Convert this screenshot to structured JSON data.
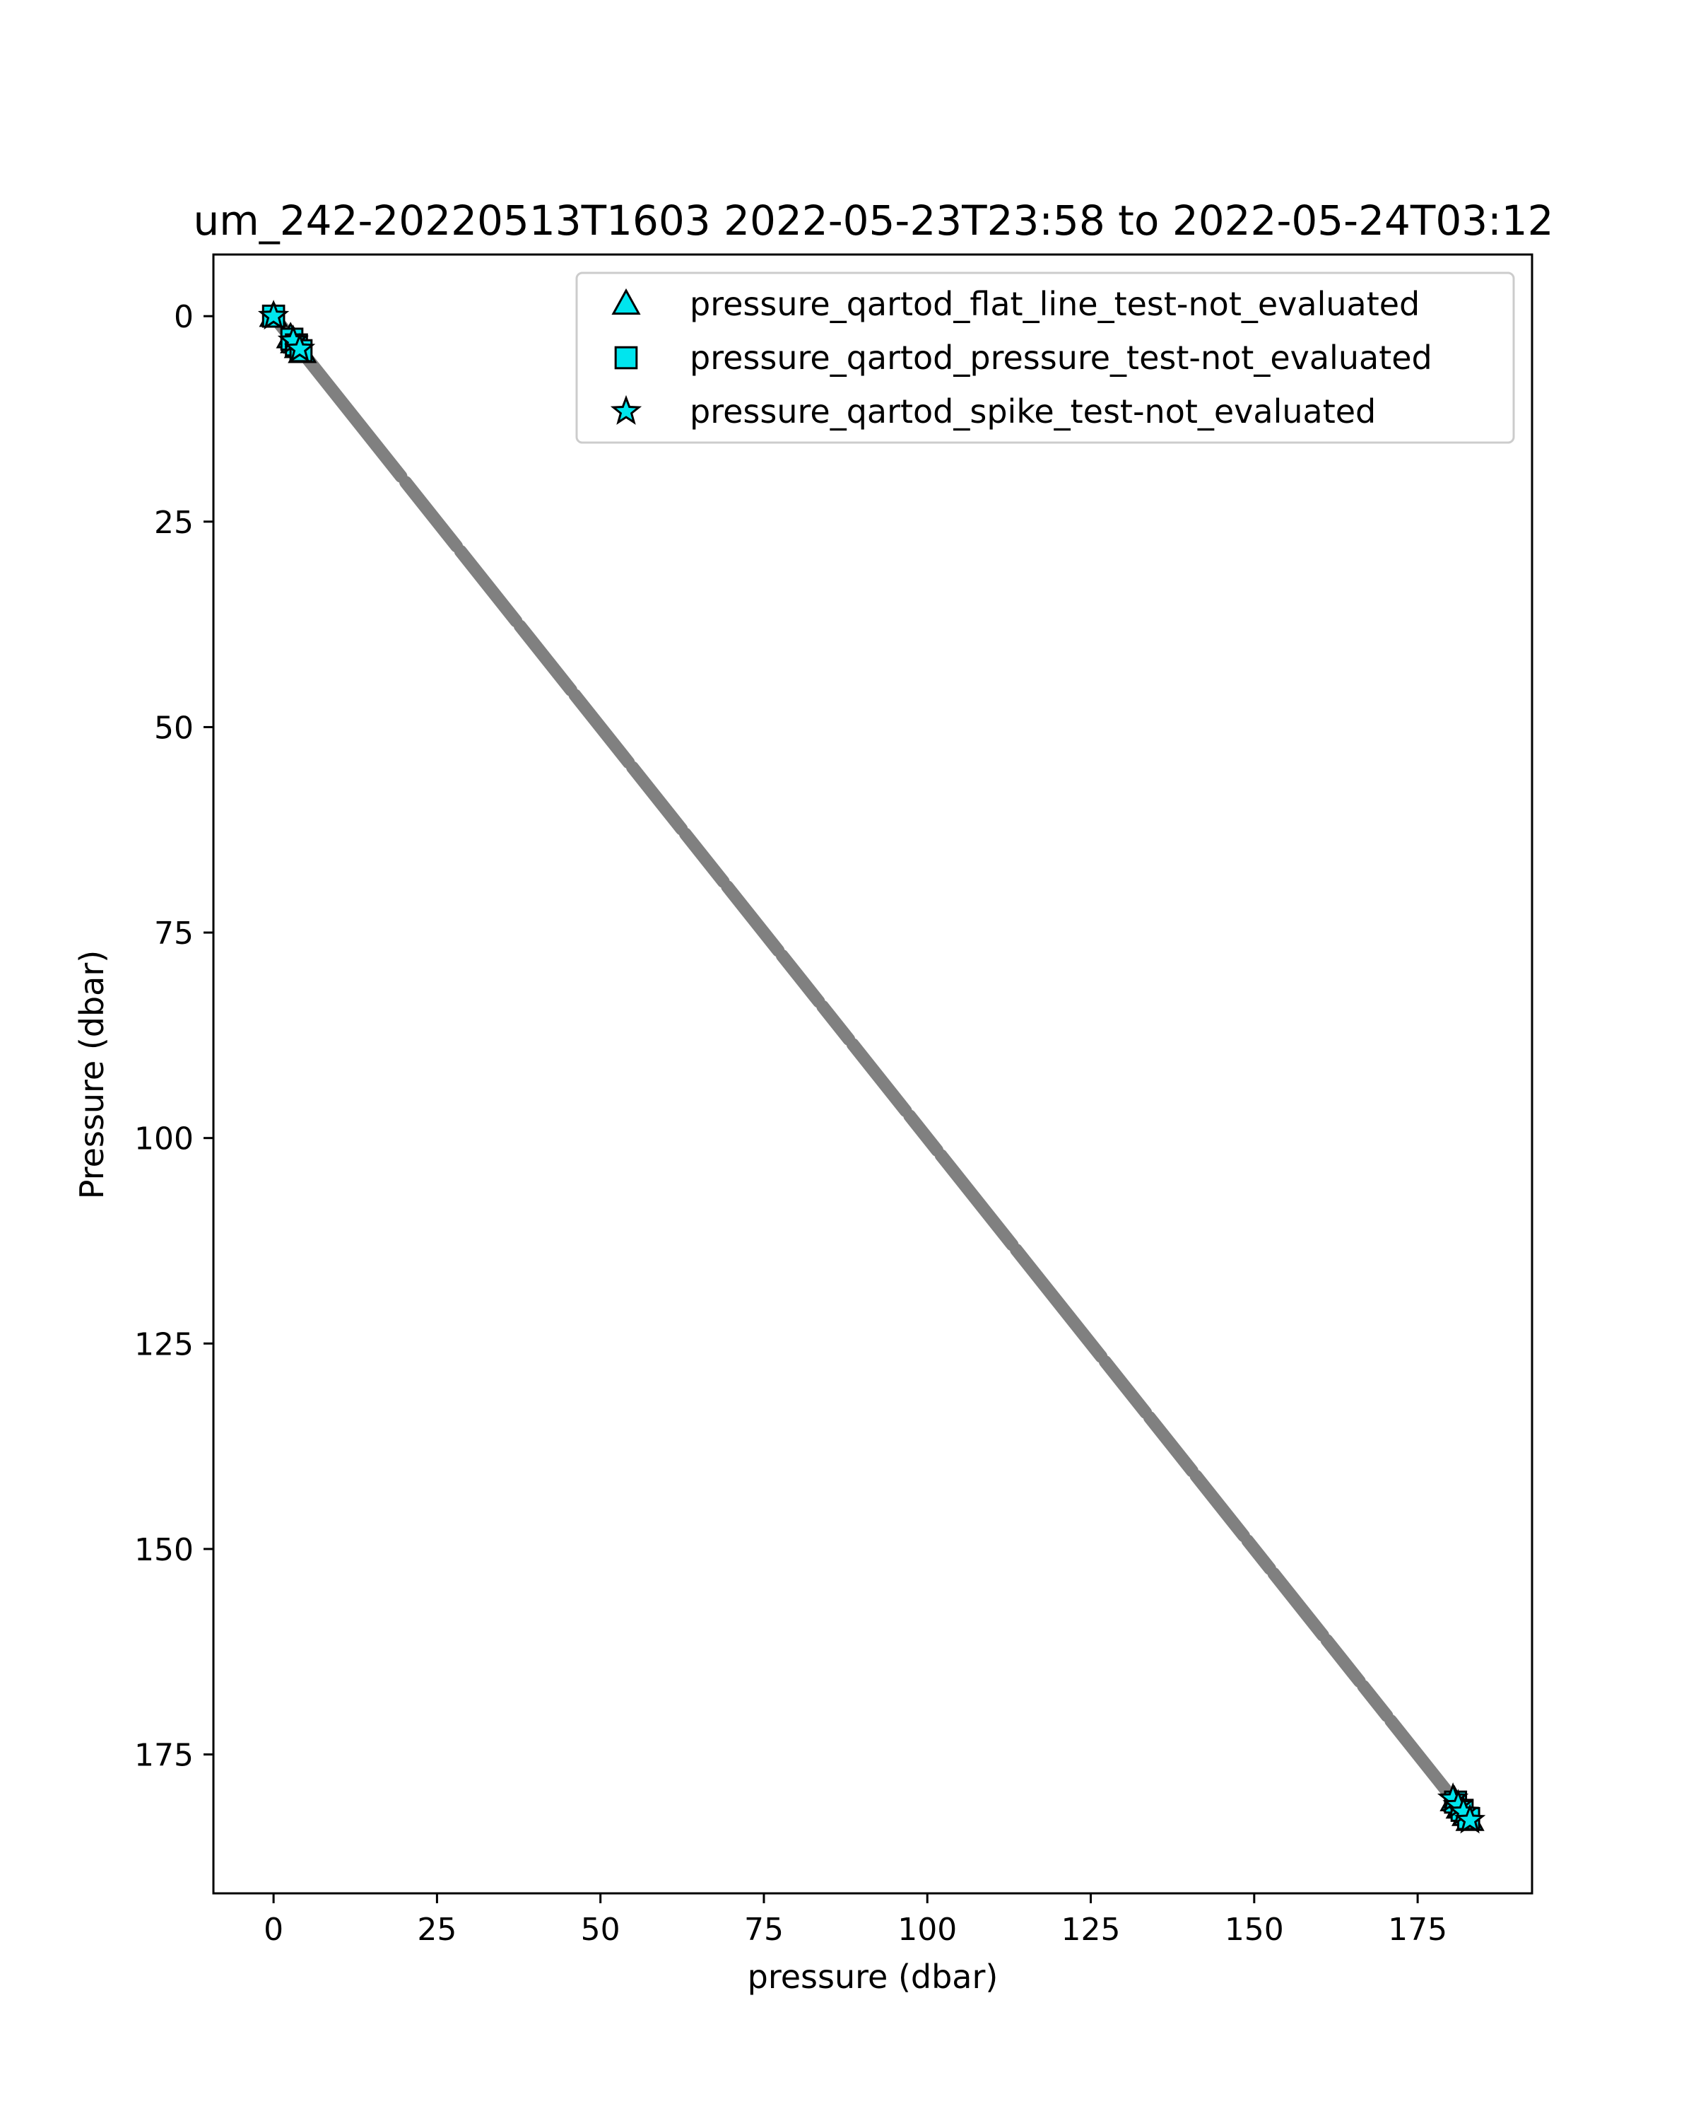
{
  "chart_data": {
    "type": "scatter",
    "title": "um_242-20220513T1603 2022-05-23T23:58 to 2022-05-24T03:12",
    "xlabel": "pressure (dbar)",
    "ylabel": "Pressure (dbar)",
    "xlim": [
      -9.2,
      192.5
    ],
    "ylim": [
      191.9,
      -7.5
    ],
    "y_inverted": true,
    "grid": false,
    "legend_position": "top-right",
    "xticks": [
      0,
      25,
      50,
      75,
      100,
      125,
      150,
      175
    ],
    "yticks": [
      0,
      25,
      50,
      75,
      100,
      125,
      150,
      175
    ],
    "base_series": {
      "color": "#808080",
      "x_start": 0,
      "x_end": 183,
      "relation": "y = x",
      "gaps": [
        [
          19.5,
          20.2
        ],
        [
          28.0,
          28.6
        ],
        [
          37.1,
          37.7
        ],
        [
          45.5,
          46.1
        ],
        [
          54.3,
          54.9
        ],
        [
          62.4,
          63.0
        ],
        [
          68.8,
          69.4
        ],
        [
          77.2,
          77.8
        ],
        [
          83.4,
          84.0
        ],
        [
          88.0,
          88.6
        ],
        [
          96.7,
          97.3
        ],
        [
          101.5,
          102.1
        ],
        [
          113.0,
          113.6
        ],
        [
          126.6,
          127.2
        ],
        [
          133.4,
          134.0
        ],
        [
          140.5,
          141.1
        ],
        [
          148.4,
          149.0
        ],
        [
          152.4,
          153.0
        ],
        [
          160.5,
          161.1
        ],
        [
          166.1,
          166.7
        ],
        [
          170.3,
          170.9
        ]
      ]
    },
    "series": [
      {
        "name": "pressure_qartod_flat_line_test-not_evaluated",
        "marker": "triangle",
        "color": "#00e5ee",
        "x": [
          0.0,
          2.6,
          3.2,
          3.8,
          4.4,
          180.6,
          181.5,
          182.4,
          183.0
        ],
        "y": [
          0.0,
          2.6,
          3.2,
          3.8,
          4.4,
          180.6,
          181.5,
          182.4,
          183.0
        ]
      },
      {
        "name": "pressure_qartod_pressure_test-not_evaluated",
        "marker": "square",
        "color": "#00e5ee",
        "x": [
          0.0,
          2.8,
          3.5,
          4.2,
          180.8,
          181.8,
          182.8
        ],
        "y": [
          0.0,
          2.8,
          3.5,
          4.2,
          180.8,
          181.8,
          182.8
        ]
      },
      {
        "name": "pressure_qartod_spike_test-not_evaluated",
        "marker": "star",
        "color": "#00e5ee",
        "x": [
          0.0,
          3.0,
          4.0,
          180.4,
          181.2,
          182.0,
          183.0
        ],
        "y": [
          0.0,
          3.0,
          4.0,
          180.4,
          181.2,
          182.0,
          183.0
        ]
      }
    ]
  }
}
